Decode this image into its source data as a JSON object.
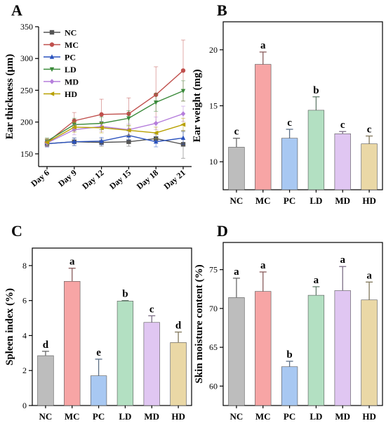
{
  "chart_data": [
    {
      "panel": "A",
      "type": "line",
      "xlabel": "",
      "ylabel": "Ear thickness (μm)",
      "ylim": [
        130,
        350
      ],
      "yticks": [
        150,
        200,
        250,
        300,
        350
      ],
      "categories": [
        "Day 6",
        "Day 9",
        "Day 12",
        "Day 15",
        "Day 18",
        "Day 21"
      ],
      "legend_position": "top-left",
      "series": [
        {
          "name": "NC",
          "color": "#555555",
          "marker": "square",
          "values": [
            166,
            169,
            168,
            169,
            174,
            165
          ],
          "errors": [
            5,
            6,
            6,
            7,
            7,
            22
          ]
        },
        {
          "name": "MC",
          "color": "#c0504d",
          "marker": "circle",
          "values": [
            168,
            202,
            212,
            213,
            243,
            281
          ],
          "errors": [
            6,
            13,
            24,
            25,
            44,
            48
          ]
        },
        {
          "name": "PC",
          "color": "#2a52be",
          "marker": "triangle-up",
          "values": [
            166,
            169,
            170,
            179,
            169,
            175
          ],
          "errors": [
            5,
            6,
            6,
            7,
            8,
            10
          ]
        },
        {
          "name": "LD",
          "color": "#3a8a3a",
          "marker": "triangle-down",
          "values": [
            170,
            196,
            198,
            206,
            231,
            249
          ],
          "errors": [
            5,
            10,
            10,
            12,
            14,
            16
          ]
        },
        {
          "name": "MD",
          "color": "#b57edc",
          "marker": "diamond",
          "values": [
            167,
            188,
            193,
            188,
            198,
            213
          ],
          "errors": [
            5,
            8,
            8,
            9,
            10,
            12
          ]
        },
        {
          "name": "HD",
          "color": "#b8a000",
          "marker": "triangle-left",
          "values": [
            168,
            192,
            191,
            187,
            183,
            196
          ],
          "errors": [
            5,
            8,
            8,
            8,
            9,
            10
          ]
        }
      ]
    },
    {
      "panel": "B",
      "type": "bar",
      "xlabel": "",
      "ylabel": "Ear weight (mg)",
      "ylim": [
        7.5,
        22.5
      ],
      "yticks": [
        10,
        15,
        20
      ],
      "categories": [
        "NC",
        "MC",
        "PC",
        "LD",
        "MD",
        "HD"
      ],
      "values": [
        11.3,
        18.7,
        12.1,
        14.6,
        12.5,
        11.6
      ],
      "errors": [
        0.8,
        1.1,
        0.8,
        1.2,
        0.2,
        0.7
      ],
      "letters": [
        "c",
        "a",
        "c",
        "b",
        "c",
        "c"
      ],
      "colors": [
        "#bdbdbd",
        "#f7a5a5",
        "#a8c8f2",
        "#b3e0c2",
        "#e0c6f2",
        "#ead8a6"
      ]
    },
    {
      "panel": "C",
      "type": "bar",
      "xlabel": "",
      "ylabel": "Spleen index (%)",
      "ylim": [
        0,
        9
      ],
      "yticks": [
        0,
        2,
        4,
        6,
        8
      ],
      "categories": [
        "NC",
        "MC",
        "PC",
        "LD",
        "MD",
        "HD"
      ],
      "values": [
        2.85,
        7.1,
        1.7,
        5.97,
        4.75,
        3.6
      ],
      "errors": [
        0.25,
        0.75,
        0.95,
        0.03,
        0.38,
        0.6
      ],
      "letters": [
        "d",
        "a",
        "e",
        "b",
        "c",
        "d"
      ],
      "colors": [
        "#bdbdbd",
        "#f7a5a5",
        "#a8c8f2",
        "#b3e0c2",
        "#e0c6f2",
        "#ead8a6"
      ]
    },
    {
      "panel": "D",
      "type": "bar",
      "xlabel": "",
      "ylabel": "Skin moisture content (%)",
      "ylim": [
        57.5,
        78.5
      ],
      "yticks": [
        60,
        65,
        70,
        75
      ],
      "categories": [
        "NC",
        "MC",
        "PC",
        "LD",
        "MD",
        "HD"
      ],
      "values": [
        71.4,
        72.2,
        62.5,
        71.7,
        72.3,
        71.1
      ],
      "errors": [
        2.5,
        2.5,
        0.7,
        1.1,
        3.1,
        2.3
      ],
      "letters": [
        "a",
        "a",
        "b",
        "a",
        "a",
        "a"
      ],
      "colors": [
        "#bdbdbd",
        "#f7a5a5",
        "#a8c8f2",
        "#b3e0c2",
        "#e0c6f2",
        "#ead8a6"
      ]
    }
  ]
}
